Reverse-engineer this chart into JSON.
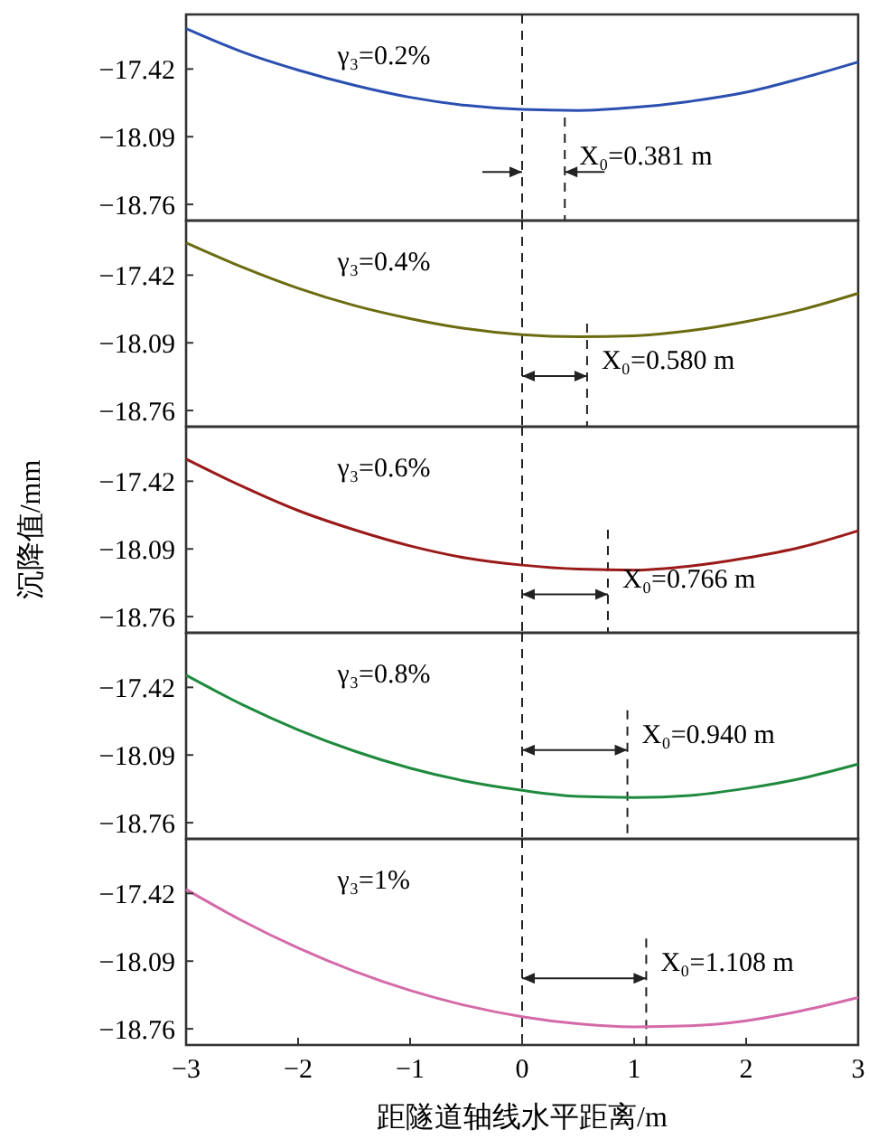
{
  "chart_data": [
    {
      "type": "line",
      "x": [
        -3,
        -2.5,
        -2,
        -1.5,
        -1,
        -0.5,
        0,
        0.5,
        1,
        1.5,
        2,
        2.5,
        3
      ],
      "xlim": [
        -3,
        3
      ],
      "ylim": [
        -18.92,
        -16.88
      ],
      "yticks": [
        -17.42,
        -18.09,
        -18.76
      ],
      "tick_labels": "y",
      "line_style": "solid",
      "series": [
        {
          "color": "#2a4fb0",
          "values": [
            -17.02,
            -17.25,
            -17.43,
            -17.58,
            -17.7,
            -17.78,
            -17.82,
            -17.83,
            -17.8,
            -17.74,
            -17.65,
            -17.51,
            -17.35
          ]
        }
      ],
      "ref_lines": [
        {
          "axis": "x",
          "value": 0,
          "line_style": "dashed"
        },
        {
          "axis": "x",
          "value": 0.381,
          "line_style": "dashed"
        }
      ],
      "annotations": [
        "γ₃=0.2%",
        {
          "text": "X₀=0.381 m",
          "x": 0.381,
          "y": -18.44
        }
      ]
    },
    {
      "type": "line",
      "x": [
        -3,
        -2.5,
        -2,
        -1.5,
        -1,
        -0.5,
        0,
        0.5,
        1,
        1.5,
        2,
        2.5,
        3
      ],
      "xlim": [
        -3,
        3
      ],
      "ylim": [
        -18.92,
        -16.88
      ],
      "yticks": [
        -17.42,
        -18.09,
        -18.76
      ],
      "tick_labels": "y",
      "line_style": "solid",
      "series": [
        {
          "color": "#6b6b10",
          "values": [
            -17.1,
            -17.34,
            -17.55,
            -17.72,
            -17.85,
            -17.95,
            -18.01,
            -18.03,
            -18.02,
            -17.97,
            -17.88,
            -17.76,
            -17.6
          ]
        }
      ],
      "ref_lines": [
        {
          "axis": "x",
          "value": 0,
          "line_style": "dashed"
        },
        {
          "axis": "x",
          "value": 0.58,
          "line_style": "dashed"
        }
      ],
      "annotations": [
        "γ₃=0.4%",
        {
          "text": "X₀=0.580 m",
          "x": 0.58,
          "y": -18.42
        }
      ]
    },
    {
      "type": "line",
      "x": [
        -3,
        -2.5,
        -2,
        -1.5,
        -1,
        -0.5,
        0,
        0.5,
        1,
        1.5,
        2,
        2.5,
        3
      ],
      "xlim": [
        -3,
        3
      ],
      "ylim": [
        -18.92,
        -16.88
      ],
      "yticks": [
        -17.42,
        -18.09,
        -18.76
      ],
      "tick_labels": "y",
      "line_style": "solid",
      "ylabel": "沉降值/mm",
      "series": [
        {
          "color": "#9a1a1a",
          "values": [
            -17.2,
            -17.47,
            -17.71,
            -17.9,
            -18.06,
            -18.18,
            -18.25,
            -18.29,
            -18.3,
            -18.26,
            -18.18,
            -18.07,
            -17.91
          ]
        }
      ],
      "ref_lines": [
        {
          "axis": "x",
          "value": 0,
          "line_style": "dashed"
        },
        {
          "axis": "x",
          "value": 0.766,
          "line_style": "dashed"
        }
      ],
      "annotations": [
        "γ₃=0.6%",
        {
          "text": "X₀=0.766 m",
          "x": 0.766,
          "y": -18.54
        }
      ]
    },
    {
      "type": "line",
      "x": [
        -3,
        -2.5,
        -2,
        -1.5,
        -1,
        -0.5,
        0,
        0.5,
        1,
        1.5,
        2,
        2.5,
        3
      ],
      "xlim": [
        -3,
        3
      ],
      "ylim": [
        -18.92,
        -16.88
      ],
      "yticks": [
        -17.42,
        -18.09,
        -18.76
      ],
      "tick_labels": "y",
      "line_style": "solid",
      "series": [
        {
          "color": "#1f8a3e",
          "values": [
            -17.3,
            -17.59,
            -17.84,
            -18.05,
            -18.22,
            -18.35,
            -18.44,
            -18.5,
            -18.51,
            -18.49,
            -18.42,
            -18.32,
            -18.18
          ]
        }
      ],
      "ref_lines": [
        {
          "axis": "x",
          "value": 0,
          "line_style": "dashed"
        },
        {
          "axis": "x",
          "value": 0.94,
          "line_style": "dashed"
        }
      ],
      "annotations": [
        "γ₃=0.8%",
        {
          "text": "X₀=0.940 m",
          "x": 0.94,
          "y": -18.04
        }
      ]
    },
    {
      "type": "line",
      "x": [
        -3,
        -2.5,
        -2,
        -1.5,
        -1,
        -0.5,
        0,
        0.5,
        1,
        1.5,
        2,
        2.5,
        3
      ],
      "xlim": [
        -3,
        3
      ],
      "xticks": [
        -3,
        -2,
        -1,
        0,
        1,
        2,
        3
      ],
      "ylim": [
        -18.92,
        -16.88
      ],
      "yticks": [
        -17.42,
        -18.09,
        -18.76
      ],
      "line_style": "solid",
      "xlabel": "距隧道轴线水平距离/m",
      "series": [
        {
          "color": "#d46aa8",
          "values": [
            -17.38,
            -17.69,
            -17.96,
            -18.19,
            -18.38,
            -18.53,
            -18.64,
            -18.71,
            -18.74,
            -18.73,
            -18.68,
            -18.58,
            -18.45
          ]
        }
      ],
      "ref_lines": [
        {
          "axis": "x",
          "value": 0,
          "line_style": "dashed"
        },
        {
          "axis": "x",
          "value": 1.108,
          "line_style": "dashed"
        }
      ],
      "annotations": [
        "γ₃=1%",
        {
          "text": "X₀=1.108 m",
          "x": 1.108,
          "y": -18.26
        }
      ]
    }
  ]
}
